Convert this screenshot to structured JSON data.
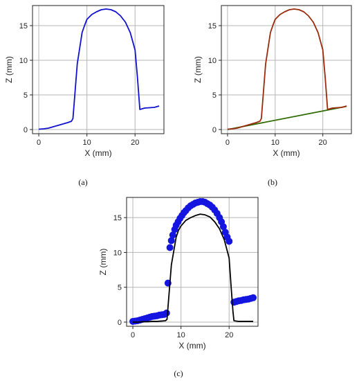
{
  "figure": {
    "panel_labels": [
      "(a)",
      "(b)",
      "(c)"
    ]
  },
  "chart_data": [
    {
      "panel": "(a)",
      "type": "line",
      "xlabel": "X (mm)",
      "ylabel": "Z (mm)",
      "xlim": [
        -1.3,
        26
      ],
      "ylim": [
        -0.6,
        17.9
      ],
      "xticks": [
        0,
        10,
        20
      ],
      "yticks": [
        0,
        5,
        10,
        15
      ],
      "grid": true,
      "series": [
        {
          "color": "#1010d0",
          "style": "line",
          "x": [
            0,
            1,
            2,
            3,
            4,
            5,
            6,
            6.8,
            7.1,
            8,
            9,
            9.5,
            10,
            11,
            12,
            13,
            14,
            15,
            16,
            17,
            18,
            19,
            20,
            20.5,
            21,
            22,
            23,
            24,
            25
          ],
          "y": [
            0.05,
            0.1,
            0.2,
            0.4,
            0.6,
            0.8,
            1.0,
            1.2,
            1.6,
            9.5,
            14.0,
            15.0,
            15.9,
            16.6,
            17.0,
            17.3,
            17.4,
            17.3,
            17.0,
            16.4,
            15.5,
            14.0,
            11.5,
            7.5,
            2.9,
            3.1,
            3.15,
            3.2,
            3.4
          ]
        }
      ]
    },
    {
      "panel": "(b)",
      "type": "line",
      "xlabel": "X (mm)",
      "ylabel": "Z (mm)",
      "xlim": [
        -1.3,
        26
      ],
      "ylim": [
        -0.6,
        17.9
      ],
      "xticks": [
        0,
        10,
        20
      ],
      "yticks": [
        0,
        5,
        10,
        15
      ],
      "grid": true,
      "series": [
        {
          "color": "#2e6b00",
          "style": "line",
          "x": [
            0,
            25
          ],
          "y": [
            0.0,
            3.35
          ]
        },
        {
          "color": "#9a2a0a",
          "style": "line",
          "x": [
            0,
            1,
            2,
            3,
            4,
            5,
            6,
            6.8,
            7.1,
            8,
            9,
            9.5,
            10,
            11,
            12,
            13,
            14,
            15,
            16,
            17,
            18,
            19,
            20,
            20.5,
            21,
            22,
            23,
            24,
            25
          ],
          "y": [
            0.05,
            0.1,
            0.2,
            0.4,
            0.6,
            0.8,
            1.0,
            1.2,
            1.6,
            9.5,
            14.0,
            15.0,
            15.9,
            16.6,
            17.0,
            17.3,
            17.4,
            17.3,
            17.0,
            16.4,
            15.5,
            14.0,
            11.5,
            7.5,
            2.9,
            3.1,
            3.15,
            3.2,
            3.4
          ]
        }
      ]
    },
    {
      "panel": "(c)",
      "type": "scatter",
      "xlabel": "X (mm)",
      "ylabel": "Z (mm)",
      "xlim": [
        -1.3,
        26
      ],
      "ylim": [
        -0.6,
        17.9
      ],
      "xticks": [
        0,
        10,
        20
      ],
      "yticks": [
        0,
        5,
        10,
        15
      ],
      "grid": true,
      "series": [
        {
          "color": "#1515e0",
          "style": "scatter",
          "x": [
            0,
            0.5,
            1,
            1.5,
            2,
            2.5,
            3,
            3.5,
            4,
            4.5,
            5,
            5.5,
            6,
            6.5,
            7,
            7.3,
            7.7,
            8,
            8.3,
            8.7,
            9,
            9.4,
            9.8,
            10.2,
            10.6,
            11,
            11.5,
            12,
            12.5,
            13,
            13.5,
            14,
            14.5,
            15,
            15.5,
            16,
            16.5,
            17,
            17.5,
            18,
            18.4,
            18.8,
            19.2,
            19.6,
            20,
            21,
            21.5,
            22,
            22.5,
            23,
            23.5,
            24,
            24.5,
            25
          ],
          "y": [
            0.1,
            0.15,
            0.2,
            0.3,
            0.4,
            0.5,
            0.6,
            0.7,
            0.8,
            0.85,
            0.9,
            1.0,
            1.05,
            1.1,
            1.3,
            5.6,
            10.7,
            11.7,
            12.5,
            13.3,
            13.9,
            14.4,
            14.9,
            15.3,
            15.7,
            16.0,
            16.4,
            16.7,
            16.9,
            17.1,
            17.2,
            17.3,
            17.3,
            17.2,
            17.0,
            16.8,
            16.5,
            16.1,
            15.6,
            15.0,
            14.4,
            13.7,
            12.9,
            12.2,
            11.6,
            2.85,
            2.95,
            3.05,
            3.1,
            3.2,
            3.25,
            3.3,
            3.4,
            3.5
          ]
        },
        {
          "color": "#000000",
          "style": "line",
          "x": [
            0,
            1,
            2,
            3,
            4,
            5,
            6,
            6.8,
            7.1,
            8,
            9,
            9.5,
            10,
            11,
            12,
            13,
            14,
            15,
            16,
            17,
            18,
            19,
            20,
            20.4,
            20.8,
            21,
            22,
            23,
            24,
            25
          ],
          "y": [
            0.0,
            0.0,
            0.05,
            0.05,
            0.1,
            0.1,
            0.15,
            0.2,
            0.4,
            8.2,
            12.2,
            13.2,
            13.8,
            14.6,
            15.0,
            15.3,
            15.5,
            15.4,
            15.1,
            14.4,
            13.4,
            11.8,
            9.2,
            5.2,
            1.5,
            0.2,
            0.1,
            0.1,
            0.1,
            0.1
          ]
        }
      ]
    }
  ]
}
